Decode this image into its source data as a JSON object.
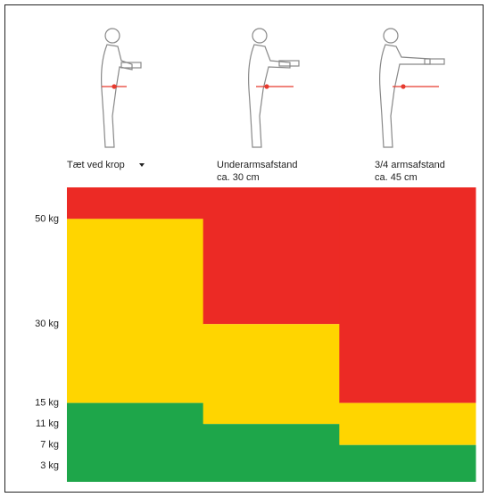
{
  "chart_data": {
    "type": "zones",
    "categories": [
      "Tæt ved krop",
      "Underarmsafstand",
      "3/4 armsafstand"
    ],
    "category_notes": [
      null,
      "ca. 30 cm",
      "ca. 45 cm"
    ],
    "series": [
      {
        "color": "#1ea64a",
        "values": [
          15,
          11,
          7
        ]
      },
      {
        "color": "#ffd500",
        "values": [
          50,
          30,
          15
        ]
      }
    ],
    "background_color": "#ec2a25",
    "ylim": [
      0,
      56
    ],
    "yticks": [
      {
        "value": 3,
        "label": "3 kg"
      },
      {
        "value": 7,
        "label": "7 kg"
      },
      {
        "value": 11,
        "label": "11 kg"
      },
      {
        "value": 15,
        "label": "15 kg"
      },
      {
        "value": 30,
        "label": "30 kg"
      },
      {
        "value": 50,
        "label": "50 kg"
      }
    ]
  }
}
